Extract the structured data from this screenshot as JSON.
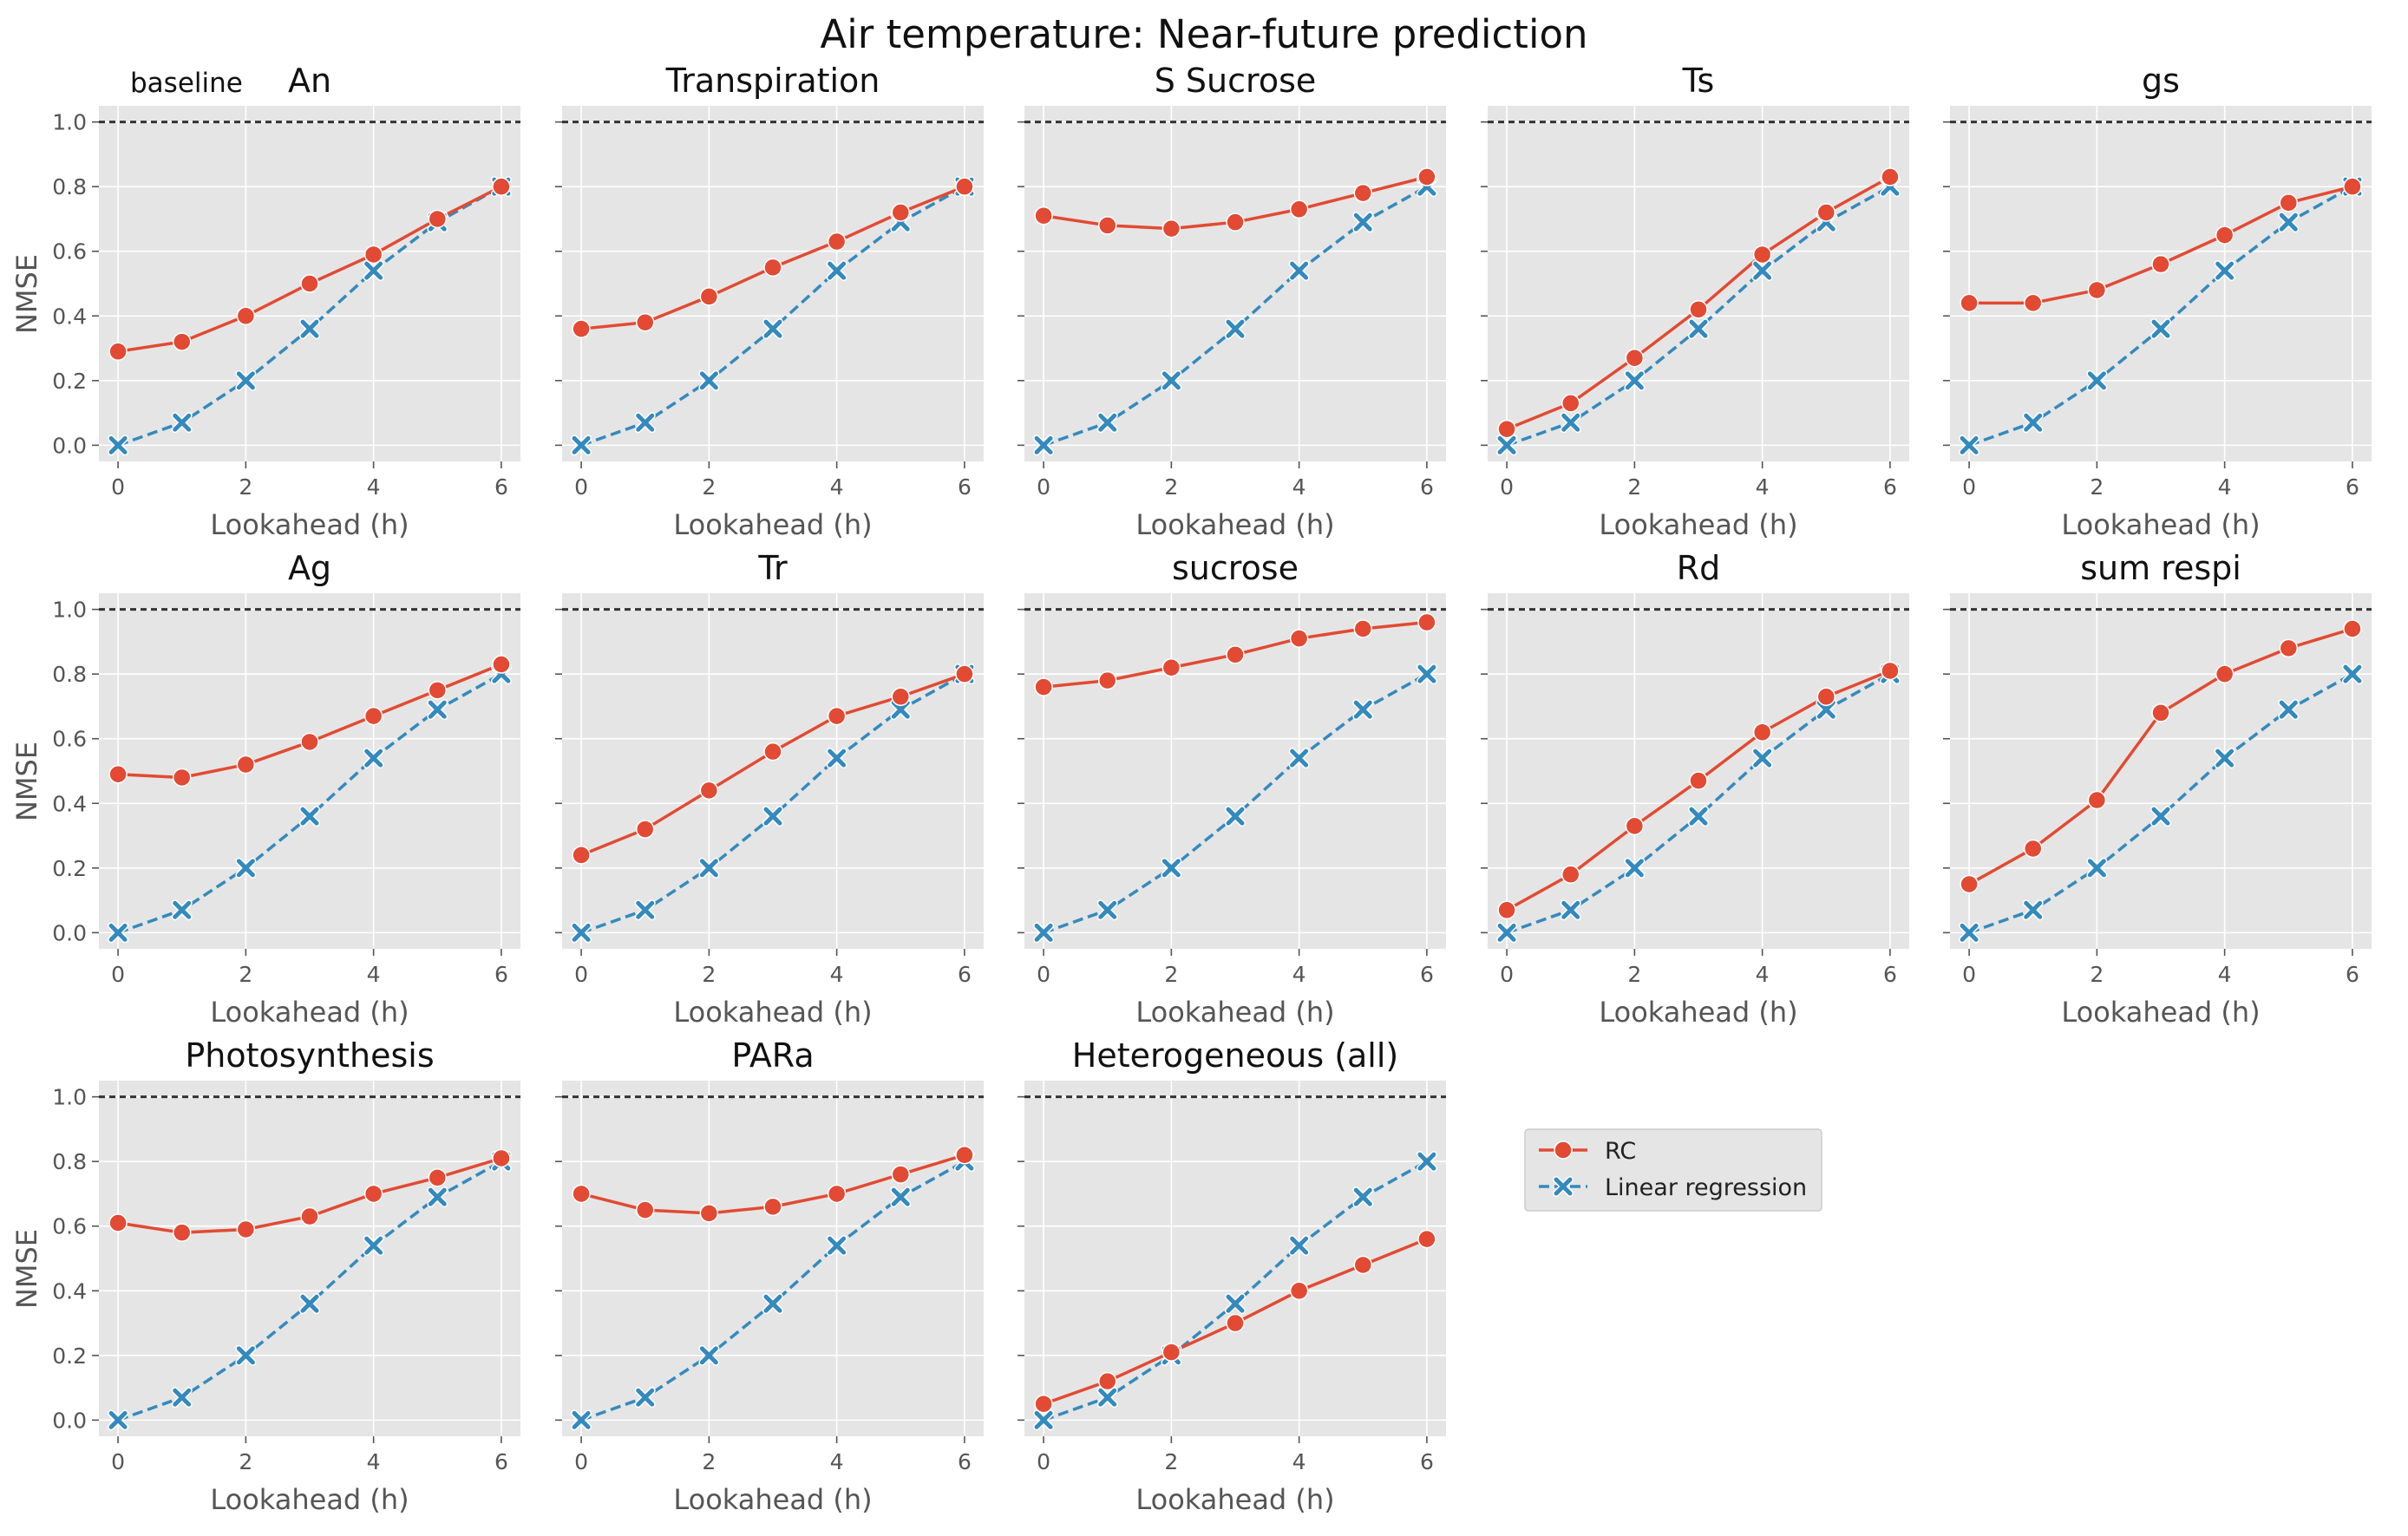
{
  "figure": {
    "title": "Air temperature: Near-future prediction",
    "baseline_label": "baseline"
  },
  "chart_data": {
    "type": "line",
    "xlabel": "Lookahead (h)",
    "ylabel": "NMSE",
    "x": [
      0,
      1,
      2,
      3,
      4,
      5,
      6
    ],
    "xticks": [
      0,
      2,
      4,
      6
    ],
    "yticks": [
      0.0,
      0.2,
      0.4,
      0.6,
      0.8,
      1.0
    ],
    "ytick_labels": [
      "0.0",
      "0.2",
      "0.4",
      "0.6",
      "0.8",
      "1.0"
    ],
    "xlim": [
      -0.3,
      6.3
    ],
    "ylim": [
      -0.05,
      1.05
    ],
    "baseline_value": 1.0,
    "grid": true,
    "background": "#e5e5e5",
    "legend_placement": "right of last row",
    "series_styles": [
      {
        "name": "RC",
        "color": "#e24a33",
        "marker": "circle",
        "linestyle": "solid"
      },
      {
        "name": "Linear regression",
        "color": "#348abd",
        "marker": "x",
        "linestyle": "dashed"
      }
    ],
    "panels": [
      {
        "title": "An",
        "rc": [
          0.29,
          0.32,
          0.4,
          0.5,
          0.59,
          0.7,
          0.8
        ],
        "linear": [
          0.0,
          0.07,
          0.2,
          0.36,
          0.54,
          0.69,
          0.8
        ]
      },
      {
        "title": "Transpiration",
        "rc": [
          0.36,
          0.38,
          0.46,
          0.55,
          0.63,
          0.72,
          0.8
        ],
        "linear": [
          0.0,
          0.07,
          0.2,
          0.36,
          0.54,
          0.69,
          0.8
        ]
      },
      {
        "title": "S Sucrose",
        "rc": [
          0.71,
          0.68,
          0.67,
          0.69,
          0.73,
          0.78,
          0.83
        ],
        "linear": [
          0.0,
          0.07,
          0.2,
          0.36,
          0.54,
          0.69,
          0.8
        ]
      },
      {
        "title": "Ts",
        "rc": [
          0.05,
          0.13,
          0.27,
          0.42,
          0.59,
          0.72,
          0.83
        ],
        "linear": [
          0.0,
          0.07,
          0.2,
          0.36,
          0.54,
          0.69,
          0.8
        ]
      },
      {
        "title": "gs",
        "rc": [
          0.44,
          0.44,
          0.48,
          0.56,
          0.65,
          0.75,
          0.8
        ],
        "linear": [
          0.0,
          0.07,
          0.2,
          0.36,
          0.54,
          0.69,
          0.8
        ]
      },
      {
        "title": "Ag",
        "rc": [
          0.49,
          0.48,
          0.52,
          0.59,
          0.67,
          0.75,
          0.83
        ],
        "linear": [
          0.0,
          0.07,
          0.2,
          0.36,
          0.54,
          0.69,
          0.8
        ]
      },
      {
        "title": "Tr",
        "rc": [
          0.24,
          0.32,
          0.44,
          0.56,
          0.67,
          0.73,
          0.8
        ],
        "linear": [
          0.0,
          0.07,
          0.2,
          0.36,
          0.54,
          0.69,
          0.8
        ]
      },
      {
        "title": "sucrose",
        "rc": [
          0.76,
          0.78,
          0.82,
          0.86,
          0.91,
          0.94,
          0.96
        ],
        "linear": [
          0.0,
          0.07,
          0.2,
          0.36,
          0.54,
          0.69,
          0.8
        ]
      },
      {
        "title": "Rd",
        "rc": [
          0.07,
          0.18,
          0.33,
          0.47,
          0.62,
          0.73,
          0.81
        ],
        "linear": [
          0.0,
          0.07,
          0.2,
          0.36,
          0.54,
          0.69,
          0.8
        ]
      },
      {
        "title": "sum respi",
        "rc": [
          0.15,
          0.26,
          0.41,
          0.68,
          0.8,
          0.88,
          0.94
        ],
        "linear": [
          0.0,
          0.07,
          0.2,
          0.36,
          0.54,
          0.69,
          0.8
        ]
      },
      {
        "title": "Photosynthesis",
        "rc": [
          0.61,
          0.58,
          0.59,
          0.63,
          0.7,
          0.75,
          0.81
        ],
        "linear": [
          0.0,
          0.07,
          0.2,
          0.36,
          0.54,
          0.69,
          0.8
        ]
      },
      {
        "title": "PARa",
        "rc": [
          0.7,
          0.65,
          0.64,
          0.66,
          0.7,
          0.76,
          0.82
        ],
        "linear": [
          0.0,
          0.07,
          0.2,
          0.36,
          0.54,
          0.69,
          0.8
        ]
      },
      {
        "title": "Heterogeneous (all)",
        "rc": [
          0.05,
          0.12,
          0.21,
          0.3,
          0.4,
          0.48,
          0.56
        ],
        "linear": [
          0.0,
          0.07,
          0.2,
          0.36,
          0.54,
          0.69,
          0.8
        ]
      }
    ]
  },
  "legend": {
    "rc_label": "RC",
    "linear_label": "Linear regression"
  }
}
